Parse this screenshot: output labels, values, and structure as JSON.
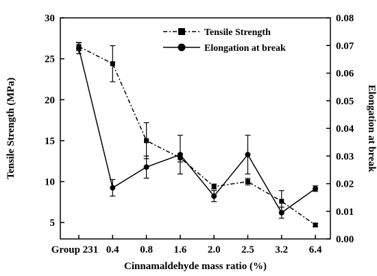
{
  "chart_data": {
    "type": "line",
    "title": "",
    "xlabel": "Cinnamaldehyde mass ratio (%)",
    "ylabel": "Tensile Strength (MPa)",
    "y2label": "Elongation at break",
    "categories": [
      "Group 231",
      "0.4",
      "0.8",
      "1.6",
      "2.0",
      "2.5",
      "3.2",
      "6.4"
    ],
    "ylim": [
      3,
      30
    ],
    "y_ticks": [
      5,
      10,
      15,
      20,
      25,
      30
    ],
    "y2lim": [
      0,
      0.08
    ],
    "y2_ticks": [
      "0.00",
      "0.01",
      "0.02",
      "0.03",
      "0.04",
      "0.05",
      "0.06",
      "0.07",
      "0.08"
    ],
    "grid": false,
    "legend_position": "top-right",
    "series": [
      {
        "name": "Tensile Strength",
        "axis": "left",
        "marker": "square",
        "line_style": "dash-dot",
        "values": [
          26.5,
          24.4,
          15.0,
          12.9,
          9.4,
          10.0,
          7.6,
          4.7
        ],
        "errors": [
          0.5,
          2.2,
          2.2,
          0.5,
          0.3,
          0.4,
          1.3,
          0.2
        ]
      },
      {
        "name": "Elongation at break",
        "axis": "right",
        "marker": "circle",
        "line_style": "solid",
        "values": [
          0.069,
          0.0185,
          0.026,
          0.0305,
          0.0155,
          0.0305,
          0.0095,
          0.0182
        ],
        "errors": [
          0.002,
          0.003,
          0.004,
          0.007,
          0.002,
          0.007,
          0.002,
          0.001
        ]
      }
    ]
  }
}
